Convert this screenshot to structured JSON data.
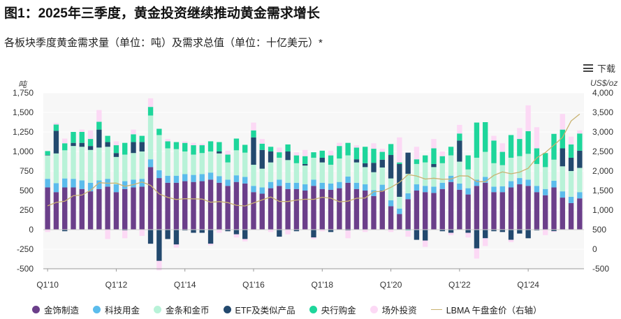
{
  "title": "图1：2025年三季度，黄金投资继续推动黄金需求增长",
  "subtitle": "各板块季度黄金需求量（单位：吨）及需求总值（单位：十亿美元）*",
  "download_label": "下载",
  "left_axis_unit": "吨",
  "right_axis_unit": "US$/oz",
  "left_ticks": [
    "1,750",
    "1,500",
    "1,250",
    "1,000",
    "750",
    "500",
    "250",
    "0",
    "-250",
    "-500"
  ],
  "right_ticks": [
    "4,000",
    "3,500",
    "3,000",
    "2,500",
    "2,000",
    "1,500",
    "1,000",
    "500",
    "0",
    "-500"
  ],
  "x_ticks": [
    "Q1'10",
    "Q1'12",
    "Q1'14",
    "Q1'16",
    "Q1'18",
    "Q1'20",
    "Q1'22",
    "Q1'24"
  ],
  "colors": {
    "jewellery": "#6b3f8a",
    "technology": "#5bbcec",
    "bar_coin": "#b8f2d8",
    "etf": "#23496e",
    "central_banks": "#1ed69b",
    "otc": "#fcd9f5",
    "lbma": "#c9b270"
  },
  "chart_data": {
    "type": "bar",
    "stacked": true,
    "ylim": [
      -500,
      1750
    ],
    "y2lim": [
      -500,
      4000
    ],
    "categories": [
      "Q1'10",
      "Q2'10",
      "Q3'10",
      "Q4'10",
      "Q1'11",
      "Q2'11",
      "Q3'11",
      "Q4'11",
      "Q1'12",
      "Q2'12",
      "Q3'12",
      "Q4'12",
      "Q1'13",
      "Q2'13",
      "Q3'13",
      "Q4'13",
      "Q1'14",
      "Q2'14",
      "Q3'14",
      "Q4'14",
      "Q1'15",
      "Q2'15",
      "Q3'15",
      "Q4'15",
      "Q1'16",
      "Q2'16",
      "Q3'16",
      "Q4'16",
      "Q1'17",
      "Q2'17",
      "Q3'17",
      "Q4'17",
      "Q1'18",
      "Q2'18",
      "Q3'18",
      "Q4'18",
      "Q1'19",
      "Q2'19",
      "Q3'19",
      "Q4'19",
      "Q1'20",
      "Q2'20",
      "Q3'20",
      "Q4'20",
      "Q1'21",
      "Q2'21",
      "Q3'21",
      "Q4'21",
      "Q1'22",
      "Q2'22",
      "Q3'22",
      "Q4'22",
      "Q1'23",
      "Q2'23",
      "Q3'23",
      "Q4'23",
      "Q1'24",
      "Q2'24",
      "Q3'24",
      "Q4'24",
      "Q1'25",
      "Q2'25",
      "Q3'25"
    ],
    "series": [
      {
        "name": "金饰制造",
        "key": "jewellery",
        "values": [
          540,
          480,
          540,
          540,
          520,
          490,
          520,
          550,
          480,
          520,
          540,
          550,
          800,
          660,
          600,
          600,
          620,
          610,
          620,
          640,
          600,
          560,
          610,
          590,
          480,
          460,
          530,
          560,
          520,
          520,
          500,
          560,
          520,
          510,
          530,
          600,
          520,
          500,
          430,
          500,
          300,
          200,
          390,
          500,
          480,
          470,
          520,
          610,
          510,
          450,
          560,
          600,
          480,
          480,
          540,
          580,
          560,
          480,
          440,
          540,
          410,
          340,
          400
        ]
      },
      {
        "name": "科技用金",
        "key": "technology",
        "values": [
          110,
          115,
          115,
          110,
          110,
          110,
          110,
          100,
          100,
          100,
          100,
          100,
          100,
          100,
          90,
          90,
          90,
          90,
          90,
          90,
          85,
          80,
          85,
          85,
          80,
          80,
          80,
          80,
          80,
          80,
          80,
          80,
          80,
          80,
          80,
          80,
          80,
          80,
          75,
          75,
          75,
          70,
          75,
          80,
          80,
          80,
          80,
          80,
          80,
          80,
          80,
          75,
          70,
          75,
          80,
          80,
          80,
          80,
          80,
          85,
          80,
          80,
          80
        ]
      },
      {
        "name": "金条和金币",
        "key": "bar_coin",
        "values": [
          300,
          380,
          360,
          420,
          430,
          420,
          420,
          410,
          350,
          340,
          340,
          350,
          560,
          450,
          350,
          340,
          290,
          260,
          270,
          270,
          290,
          220,
          320,
          310,
          270,
          240,
          250,
          280,
          290,
          250,
          240,
          280,
          260,
          240,
          300,
          270,
          260,
          220,
          230,
          220,
          280,
          150,
          250,
          260,
          300,
          250,
          250,
          260,
          280,
          240,
          280,
          320,
          300,
          270,
          300,
          280,
          330,
          280,
          280,
          270,
          320,
          330,
          310
        ]
      },
      {
        "name": "ETF及类似产品",
        "key": "etf",
        "values": [
          5,
          290,
          -20,
          40,
          50,
          50,
          230,
          60,
          50,
          -10,
          140,
          120,
          -180,
          -400,
          -120,
          -190,
          -10,
          -40,
          -40,
          -180,
          25,
          -20,
          -60,
          -120,
          350,
          240,
          140,
          -90,
          110,
          -20,
          20,
          -100,
          60,
          -30,
          0,
          -10,
          40,
          50,
          120,
          100,
          300,
          420,
          270,
          -130,
          -140,
          40,
          -20,
          -40,
          270,
          -40,
          -240,
          -110,
          -20,
          -30,
          -130,
          -50,
          -110,
          -10,
          0,
          -20,
          230,
          170,
          220
        ]
      },
      {
        "name": "央行购金",
        "key": "central_banks",
        "values": [
          50,
          80,
          90,
          140,
          140,
          90,
          100,
          80,
          100,
          150,
          100,
          80,
          110,
          80,
          90,
          90,
          110,
          120,
          100,
          130,
          120,
          100,
          150,
          100,
          90,
          80,
          60,
          70,
          90,
          100,
          100,
          70,
          90,
          120,
          160,
          160,
          150,
          210,
          180,
          100,
          140,
          20,
          -10,
          60,
          90,
          200,
          90,
          110,
          90,
          180,
          450,
          380,
          290,
          170,
          290,
          220,
          290,
          200,
          180,
          330,
          240,
          170,
          220
        ]
      },
      {
        "name": "场外投资",
        "key": "otc",
        "values": [
          -30,
          20,
          60,
          0,
          30,
          110,
          150,
          -120,
          50,
          -100,
          60,
          -80,
          110,
          -120,
          30,
          -40,
          20,
          30,
          20,
          -20,
          -40,
          50,
          -40,
          -30,
          100,
          60,
          -30,
          60,
          -60,
          40,
          80,
          -20,
          -20,
          60,
          40,
          -100,
          30,
          -30,
          70,
          40,
          -30,
          320,
          -80,
          160,
          -80,
          120,
          60,
          -30,
          110,
          -60,
          -130,
          -100,
          60,
          110,
          -30,
          140,
          330,
          270,
          -70,
          -10,
          200,
          100,
          40
        ]
      },
      {
        "name": "LBMA 午盘金价（右轴）",
        "key": "lbma",
        "axis": "right",
        "type": "line",
        "values": [
          1109,
          1197,
          1227,
          1367,
          1386,
          1506,
          1702,
          1688,
          1691,
          1609,
          1652,
          1718,
          1632,
          1415,
          1326,
          1272,
          1293,
          1288,
          1282,
          1201,
          1218,
          1192,
          1124,
          1105,
          1183,
          1260,
          1335,
          1222,
          1219,
          1257,
          1278,
          1275,
          1329,
          1306,
          1213,
          1228,
          1304,
          1309,
          1472,
          1481,
          1583,
          1711,
          1909,
          1874,
          1794,
          1816,
          1789,
          1795,
          1877,
          1871,
          1729,
          1726,
          1890,
          1976,
          1928,
          1971,
          2070,
          2338,
          2474,
          2663,
          2860,
          3280,
          3457
        ]
      }
    ]
  },
  "legend": [
    {
      "label": "金饰制造",
      "key": "jewellery",
      "kind": "dot"
    },
    {
      "label": "科技用金",
      "key": "technology",
      "kind": "dot"
    },
    {
      "label": "金条和金币",
      "key": "bar_coin",
      "kind": "dot"
    },
    {
      "label": "ETF及类似产品",
      "key": "etf",
      "kind": "dot"
    },
    {
      "label": "央行购金",
      "key": "central_banks",
      "kind": "dot"
    },
    {
      "label": "场外投资",
      "key": "otc",
      "kind": "dot"
    },
    {
      "label": "LBMA 午盘金价（右轴）",
      "key": "lbma",
      "kind": "line"
    }
  ]
}
